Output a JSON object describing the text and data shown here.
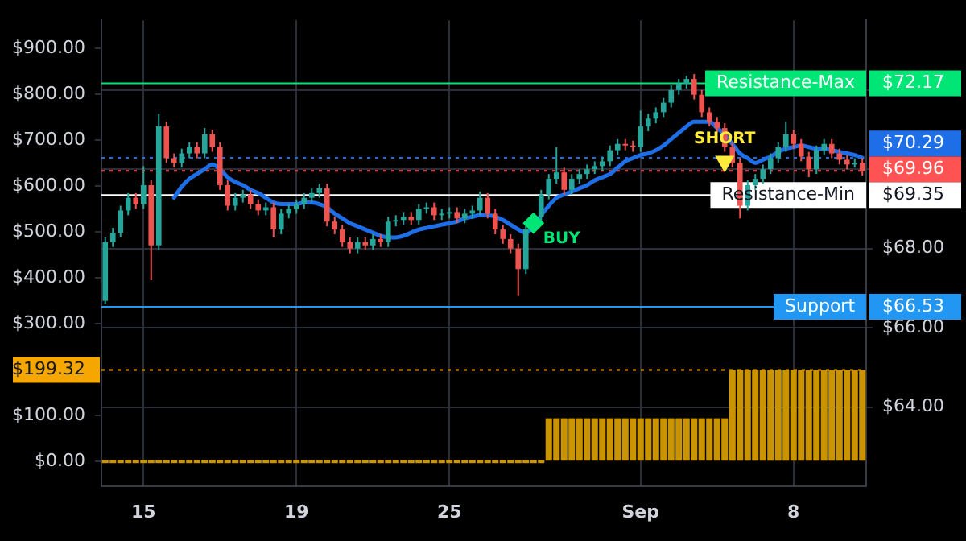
{
  "chart_data": {
    "type": "candlestick",
    "grid": true,
    "categories": [
      null,
      null,
      null,
      null,
      null,
      "15",
      null,
      null,
      null,
      null,
      null,
      null,
      null,
      null,
      null,
      null,
      null,
      null,
      null,
      null,
      null,
      null,
      null,
      null,
      null,
      "19",
      null,
      null,
      null,
      null,
      null,
      null,
      null,
      null,
      null,
      null,
      null,
      null,
      null,
      null,
      null,
      null,
      null,
      null,
      null,
      "25",
      null,
      null,
      null,
      null,
      null,
      null,
      null,
      null,
      null,
      null,
      null,
      null,
      null,
      null,
      null,
      null,
      null,
      null,
      null,
      null,
      null,
      null,
      null,
      null,
      "Sep",
      null,
      null,
      null,
      null,
      null,
      null,
      null,
      null,
      null,
      null,
      null,
      null,
      null,
      null,
      null,
      null,
      null,
      null,
      null,
      "8",
      null,
      null,
      null,
      null,
      null,
      null,
      null,
      null,
      null
    ],
    "ylim": [
      -54,
      961
    ],
    "yticks": [
      {
        "value": 0,
        "label": "$0.00"
      },
      {
        "value": 100,
        "label": "$100.00"
      },
      {
        "value": 199.32,
        "label": "$199.32"
      },
      {
        "value": 300,
        "label": "$300.00"
      },
      {
        "value": 400,
        "label": "$400.00"
      },
      {
        "value": 500,
        "label": "$500.00"
      },
      {
        "value": 600,
        "label": "$600.00"
      },
      {
        "value": 700,
        "label": "$700.00"
      },
      {
        "value": 800,
        "label": "$800.00"
      },
      {
        "value": 900,
        "label": "$900.00"
      }
    ],
    "y2lim": [
      62,
      73.76
    ],
    "y2ticks": [
      {
        "value": 64,
        "label": "$64.00"
      },
      {
        "value": 66,
        "label": "$66.00"
      },
      {
        "value": 66.53,
        "label": "$66.53"
      },
      {
        "value": 68,
        "label": "$68.00"
      },
      {
        "value": 69.35,
        "label": "$69.35"
      },
      {
        "value": 70,
        "label": null
      },
      {
        "value": 72,
        "label": null
      },
      {
        "value": 72.17,
        "label": "$72.17"
      }
    ],
    "ref_lines": [
      {
        "axis": "y2",
        "value": 72.17,
        "label": "Resistance-Max",
        "color": "#00e676",
        "line_style": "solid"
      },
      {
        "axis": "y2",
        "value": 70.29,
        "label": "$70.29",
        "color": "#1e6ee8",
        "line_style": "dotted"
      },
      {
        "axis": "y2",
        "value": 69.96,
        "label": "$69.96",
        "color": "#ff5252",
        "line_style": "dotted"
      },
      {
        "axis": "y2",
        "value": 69.35,
        "label": "Resistance-Min",
        "color": "#ffffff",
        "line_style": "solid"
      },
      {
        "axis": "y2",
        "value": 66.53,
        "label": "Support",
        "color": "#2196f3",
        "line_style": "solid"
      },
      {
        "axis": "y",
        "value": 199.32,
        "color": "#f5a700",
        "line_style": "dotted"
      }
    ],
    "series": [
      {
        "type": "bar",
        "axis": "y",
        "color": "#c99400",
        "values": [
          0,
          0,
          0,
          0,
          0,
          0,
          0,
          0,
          0,
          0,
          0,
          0,
          0,
          0,
          0,
          0,
          0,
          0,
          0,
          0,
          0,
          0,
          0,
          0,
          0,
          0,
          0,
          0,
          0,
          0,
          0,
          0,
          0,
          0,
          0,
          0,
          0,
          0,
          0,
          0,
          0,
          0,
          0,
          0,
          0,
          0,
          0,
          0,
          0,
          0,
          0,
          0,
          0,
          0,
          0,
          0,
          0,
          0,
          94,
          94,
          94,
          94,
          94,
          94,
          94,
          94,
          94,
          94,
          94,
          94,
          94,
          94,
          94,
          94,
          94,
          94,
          94,
          94,
          94,
          94,
          94,
          94,
          199.32,
          199.32,
          199.32,
          199.32,
          199.32,
          199.32,
          199.32,
          199.32,
          199.32,
          199.32,
          199.32,
          199.32,
          199.32,
          199.32,
          199.32,
          199.32,
          199.32,
          199.32
        ]
      },
      {
        "type": "line",
        "axis": "y2",
        "color": "#1e6ee8",
        "values": [
          null,
          null,
          null,
          null,
          null,
          null,
          null,
          null,
          null,
          69.28,
          69.56,
          69.76,
          69.88,
          70.0,
          70.12,
          70.0,
          69.8,
          69.68,
          69.6,
          69.48,
          69.4,
          69.28,
          69.16,
          69.12,
          69.12,
          69.12,
          69.16,
          69.16,
          69.12,
          69.04,
          68.88,
          68.76,
          68.64,
          68.56,
          68.48,
          68.4,
          68.32,
          68.28,
          68.28,
          68.32,
          68.4,
          68.48,
          68.52,
          68.56,
          68.6,
          68.64,
          68.68,
          68.76,
          68.8,
          68.84,
          68.84,
          68.8,
          68.72,
          68.6,
          68.48,
          68.4,
          68.56,
          68.84,
          69.08,
          69.28,
          69.36,
          69.44,
          69.52,
          69.6,
          69.72,
          69.8,
          69.88,
          70.04,
          70.2,
          70.28,
          70.36,
          70.4,
          70.48,
          70.6,
          70.76,
          70.92,
          71.08,
          71.2,
          71.2,
          71.2,
          71.04,
          70.88,
          70.64,
          70.4,
          70.28,
          70.16,
          70.24,
          70.32,
          70.44,
          70.52,
          70.56,
          70.6,
          70.56,
          70.52,
          70.52,
          70.48,
          70.44,
          70.4,
          70.36,
          70.29
        ]
      },
      {
        "axis": "y2",
        "ohlc": [
          [
            66.68,
            68.28,
            66.6,
            68.16
          ],
          [
            68.16,
            68.52,
            68.04,
            68.4
          ],
          [
            68.4,
            69.08,
            68.28,
            68.96
          ],
          [
            68.96,
            69.4,
            68.84,
            69.28
          ],
          [
            69.28,
            69.4,
            69.0,
            69.12
          ],
          [
            69.12,
            70.08,
            69.0,
            69.6
          ],
          [
            69.6,
            69.72,
            67.2,
            68.08
          ],
          [
            68.08,
            71.4,
            67.96,
            71.08
          ],
          [
            71.08,
            71.2,
            70.16,
            70.28
          ],
          [
            70.28,
            70.4,
            70.04,
            70.16
          ],
          [
            70.16,
            70.52,
            70.04,
            70.4
          ],
          [
            70.4,
            70.68,
            70.28,
            70.56
          ],
          [
            70.56,
            70.68,
            70.28,
            70.4
          ],
          [
            70.4,
            71.04,
            70.28,
            70.88
          ],
          [
            70.88,
            71.0,
            70.44,
            70.56
          ],
          [
            70.56,
            70.68,
            69.48,
            69.6
          ],
          [
            69.6,
            69.72,
            68.96,
            69.08
          ],
          [
            69.08,
            69.4,
            68.96,
            69.28
          ],
          [
            69.28,
            69.48,
            69.16,
            69.36
          ],
          [
            69.36,
            69.48,
            69.0,
            69.12
          ],
          [
            69.12,
            69.24,
            68.84,
            68.96
          ],
          [
            68.96,
            69.16,
            68.84,
            69.04
          ],
          [
            69.04,
            69.16,
            68.28,
            68.48
          ],
          [
            68.48,
            69.0,
            68.36,
            68.88
          ],
          [
            68.88,
            69.12,
            68.76,
            69.0
          ],
          [
            69.0,
            69.24,
            68.88,
            69.12
          ],
          [
            69.12,
            69.4,
            69.0,
            69.28
          ],
          [
            69.28,
            69.52,
            69.16,
            69.4
          ],
          [
            69.4,
            69.64,
            69.28,
            69.52
          ],
          [
            69.52,
            69.64,
            68.56,
            68.68
          ],
          [
            68.68,
            68.8,
            68.36,
            68.48
          ],
          [
            68.48,
            68.6,
            68.04,
            68.16
          ],
          [
            68.16,
            68.28,
            67.88,
            68.0
          ],
          [
            68.0,
            68.28,
            67.88,
            68.16
          ],
          [
            68.16,
            68.28,
            67.96,
            68.08
          ],
          [
            68.08,
            68.36,
            67.96,
            68.24
          ],
          [
            68.24,
            68.36,
            68.04,
            68.16
          ],
          [
            68.16,
            68.8,
            68.04,
            68.68
          ],
          [
            68.68,
            68.84,
            68.56,
            68.72
          ],
          [
            68.72,
            68.92,
            68.6,
            68.8
          ],
          [
            68.8,
            68.92,
            68.6,
            68.72
          ],
          [
            68.72,
            69.12,
            68.6,
            69.0
          ],
          [
            69.0,
            69.16,
            68.88,
            69.04
          ],
          [
            69.04,
            69.16,
            68.72,
            68.84
          ],
          [
            68.84,
            69.0,
            68.72,
            68.88
          ],
          [
            68.88,
            69.04,
            68.76,
            68.92
          ],
          [
            68.92,
            69.04,
            68.64,
            68.76
          ],
          [
            68.76,
            69.0,
            68.64,
            68.88
          ],
          [
            68.88,
            69.08,
            68.76,
            68.96
          ],
          [
            68.96,
            69.44,
            68.84,
            69.28
          ],
          [
            69.28,
            69.4,
            68.76,
            68.88
          ],
          [
            68.88,
            69.0,
            68.36,
            68.48
          ],
          [
            68.48,
            68.6,
            68.12,
            68.24
          ],
          [
            68.24,
            68.36,
            67.88,
            68.0
          ],
          [
            68.0,
            68.12,
            66.8,
            67.48
          ],
          [
            67.48,
            68.6,
            67.36,
            68.48
          ],
          null,
          [
            68.8,
            69.48,
            68.68,
            69.36
          ],
          [
            69.36,
            69.88,
            69.24,
            69.76
          ],
          [
            69.76,
            70.56,
            69.64,
            69.92
          ],
          [
            69.92,
            70.04,
            69.36,
            69.48
          ],
          [
            69.48,
            69.88,
            69.36,
            69.76
          ],
          [
            69.76,
            70.0,
            69.64,
            69.88
          ],
          [
            69.88,
            70.12,
            69.76,
            70.0
          ],
          [
            70.0,
            70.2,
            69.88,
            70.08
          ],
          [
            70.08,
            70.32,
            69.96,
            70.2
          ],
          [
            70.2,
            70.6,
            70.08,
            70.48
          ],
          [
            70.48,
            70.76,
            70.36,
            70.64
          ],
          [
            70.64,
            70.76,
            70.48,
            70.6
          ],
          [
            70.6,
            70.72,
            70.44,
            70.56
          ],
          [
            70.56,
            71.48,
            70.44,
            71.08
          ],
          [
            71.08,
            71.4,
            70.96,
            71.28
          ],
          [
            71.28,
            71.56,
            71.16,
            71.44
          ],
          [
            71.44,
            71.8,
            71.32,
            71.68
          ],
          [
            71.68,
            72.12,
            71.56,
            72.0
          ],
          [
            72.0,
            72.28,
            71.88,
            72.16
          ],
          [
            72.16,
            72.36,
            72.04,
            72.28
          ],
          [
            72.28,
            72.4,
            71.76,
            71.88
          ],
          [
            71.88,
            72.0,
            71.32,
            71.44
          ],
          [
            71.44,
            71.56,
            71.08,
            71.2
          ],
          [
            71.2,
            71.32,
            70.92,
            71.04
          ],
          [
            71.04,
            71.16,
            70.44,
            70.56
          ],
          [
            70.56,
            70.68,
            70.04,
            70.16
          ],
          [
            70.16,
            70.28,
            68.76,
            69.08
          ],
          [
            69.08,
            69.72,
            68.96,
            69.6
          ],
          [
            69.6,
            69.88,
            69.48,
            69.76
          ],
          [
            69.76,
            70.12,
            69.64,
            70.0
          ],
          [
            70.0,
            70.4,
            69.88,
            70.28
          ],
          [
            70.28,
            70.68,
            70.16,
            70.56
          ],
          [
            70.56,
            71.2,
            70.44,
            70.88
          ],
          [
            70.88,
            71.0,
            70.52,
            70.64
          ],
          [
            70.64,
            70.76,
            70.2,
            70.32
          ],
          [
            70.32,
            70.44,
            69.8,
            70.0
          ],
          [
            70.0,
            70.6,
            69.88,
            70.48
          ],
          [
            70.48,
            70.76,
            70.36,
            70.64
          ],
          [
            70.64,
            70.76,
            70.28,
            70.4
          ],
          [
            70.4,
            70.52,
            70.12,
            70.24
          ],
          [
            70.24,
            70.36,
            70.0,
            70.12
          ],
          [
            70.12,
            70.28,
            70.04,
            70.16
          ],
          [
            70.16,
            70.28,
            69.84,
            69.96
          ]
        ],
        "colors": [
          "#26a69a",
          "#26a69a",
          "#26a69a",
          "#26a69a",
          "#ef5350",
          "#26a69a",
          "#ef5350",
          "#26a69a",
          "#ef5350",
          "#ef5350",
          "#26a69a",
          "#26a69a",
          "#ef5350",
          "#26a69a",
          "#ef5350",
          "#ef5350",
          "#ef5350",
          "#26a69a",
          "#26a69a",
          "#ef5350",
          "#ef5350",
          "#26a69a",
          "#ef5350",
          "#26a69a",
          "#26a69a",
          "#26a69a",
          "#26a69a",
          "#26a69a",
          "#26a69a",
          "#ef5350",
          "#ef5350",
          "#ef5350",
          "#ef5350",
          "#26a69a",
          "#ef5350",
          "#26a69a",
          "#ef5350",
          "#26a69a",
          "#26a69a",
          "#26a69a",
          "#ef5350",
          "#26a69a",
          "#26a69a",
          "#ef5350",
          "#26a69a",
          "#26a69a",
          "#ef5350",
          "#26a69a",
          "#26a69a",
          "#26a69a",
          "#ef5350",
          "#ef5350",
          "#ef5350",
          "#ef5350",
          "#ef5350",
          "#26a69a",
          null,
          "#26a69a",
          "#26a69a",
          "#26a69a",
          "#ef5350",
          "#26a69a",
          "#26a69a",
          "#26a69a",
          "#26a69a",
          "#26a69a",
          "#26a69a",
          "#26a69a",
          "#ef5350",
          "#ef5350",
          "#26a69a",
          "#26a69a",
          "#26a69a",
          "#26a69a",
          "#26a69a",
          "#26a69a",
          "#26a69a",
          "#ef5350",
          "#ef5350",
          "#ef5350",
          "#ef5350",
          "#ef5350",
          "#ef5350",
          "#ef5350",
          "#26a69a",
          "#26a69a",
          "#26a69a",
          "#26a69a",
          "#26a69a",
          "#26a69a",
          "#ef5350",
          "#ef5350",
          "#ef5350",
          "#26a69a",
          "#26a69a",
          "#ef5350",
          "#ef5350",
          "#ef5350",
          "#26a69a",
          "#ef5350"
        ]
      },
      {
        "type": "scatter",
        "axis": "y2",
        "name": "BUY",
        "color": "#00e676",
        "marker": "diamond",
        "values": [
          null,
          null,
          null,
          null,
          null,
          null,
          null,
          null,
          null,
          null,
          null,
          null,
          null,
          null,
          null,
          null,
          null,
          null,
          null,
          null,
          null,
          null,
          null,
          null,
          null,
          null,
          null,
          null,
          null,
          null,
          null,
          null,
          null,
          null,
          null,
          null,
          null,
          null,
          null,
          null,
          null,
          null,
          null,
          null,
          null,
          null,
          null,
          null,
          null,
          null,
          null,
          null,
          null,
          null,
          null,
          null,
          68.64,
          null,
          null,
          null,
          null,
          null,
          null,
          null,
          null,
          null,
          null,
          null,
          null,
          null,
          null,
          null,
          null,
          null,
          null,
          null,
          null,
          null,
          null,
          null,
          null,
          null,
          null,
          null,
          null,
          null,
          null,
          null,
          null,
          null,
          null,
          null,
          null,
          null,
          null,
          null,
          null,
          null,
          null,
          null
        ]
      },
      {
        "type": "scatter",
        "axis": "y2",
        "name": "SHORT",
        "color": "#ffeb3b",
        "marker": "triangle",
        "values": [
          null,
          null,
          null,
          null,
          null,
          null,
          null,
          null,
          null,
          null,
          null,
          null,
          null,
          null,
          null,
          null,
          null,
          null,
          null,
          null,
          null,
          null,
          null,
          null,
          null,
          null,
          null,
          null,
          null,
          null,
          null,
          null,
          null,
          null,
          null,
          null,
          null,
          null,
          null,
          null,
          null,
          null,
          null,
          null,
          null,
          null,
          null,
          null,
          null,
          null,
          null,
          null,
          null,
          null,
          null,
          null,
          null,
          null,
          null,
          null,
          null,
          null,
          null,
          null,
          null,
          null,
          null,
          null,
          null,
          null,
          null,
          null,
          null,
          null,
          null,
          null,
          null,
          null,
          null,
          null,
          null,
          70.2,
          null,
          null,
          null,
          null,
          null,
          null,
          null,
          null,
          null,
          null,
          null,
          null,
          null,
          null,
          null,
          null,
          null,
          null
        ]
      }
    ]
  }
}
